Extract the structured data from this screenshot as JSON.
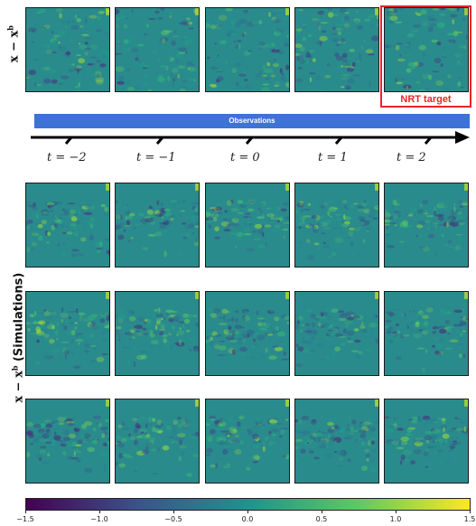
{
  "labels": {
    "top_ylabel_main": "x − x",
    "top_ylabel_sup": "b",
    "sim_ylabel_main": "x − x",
    "sim_ylabel_sup": "b",
    "sim_ylabel_suffix": " (Simulations)",
    "observations": "Observations",
    "nrt_target": "NRT target"
  },
  "time_labels": [
    "t = −2",
    "t = −1",
    "t = 0",
    "t = 1",
    "t = 2"
  ],
  "colorbar": {
    "cmap": "viridis",
    "ticks": [
      "−1.5",
      "−1.0",
      "−0.5",
      "0.0",
      "0.5",
      "1.0",
      "1.5"
    ],
    "colors": [
      "#440154",
      "#3b528b",
      "#21918c",
      "#5ec962",
      "#fde725"
    ]
  },
  "panel_background": "#2a8b8d",
  "highlight_color": "#e8252a",
  "observation_bar_color": "#3d72d7"
}
